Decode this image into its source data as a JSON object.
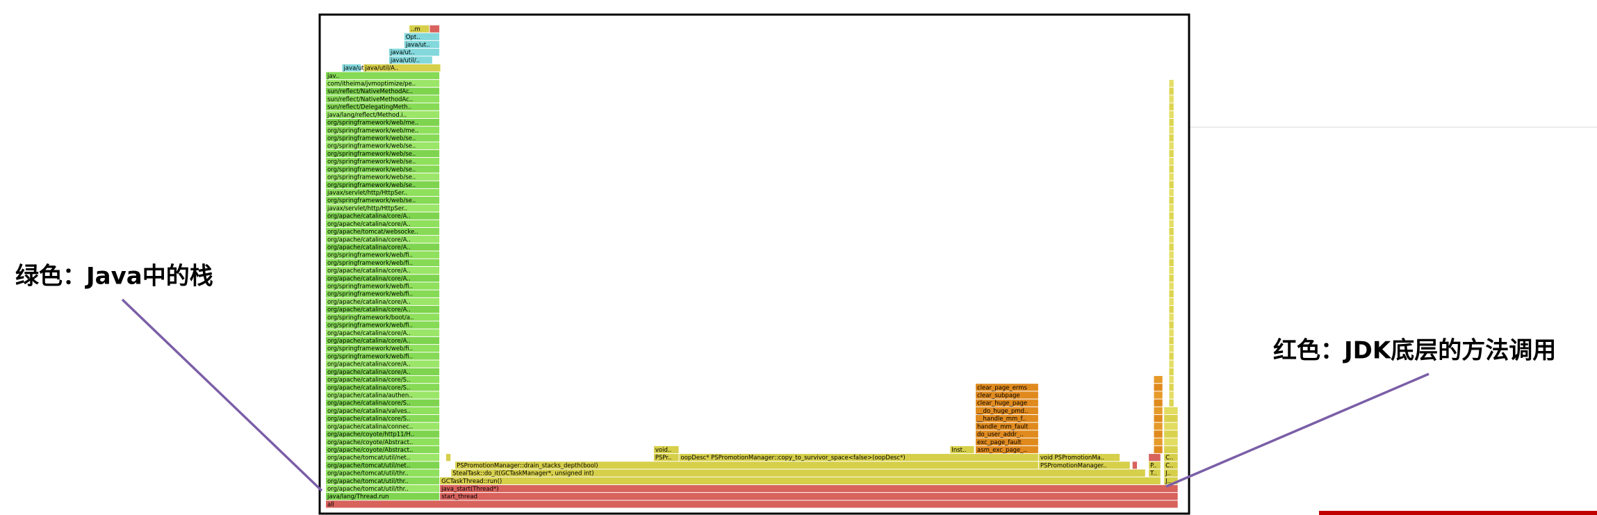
{
  "annotations": {
    "green": "绿色：Java中的栈",
    "red": "红色：JDK底层的方法调用"
  },
  "flame_graph": {
    "frames": [
      {
        "label": "all"
      },
      {
        "label": "java/lang/Thread.run"
      },
      {
        "label": "start_thread"
      },
      {
        "label": "org/apache/tomcat/util/thr.."
      },
      {
        "label": "java_start(Thread*)"
      },
      {
        "label": "org/apache/tomcat/util/thr.."
      },
      {
        "label": "GCTaskThread::run()"
      },
      {
        "label": "J.."
      },
      {
        "label": "org/apache/tomcat/util/thr.."
      },
      {
        "label": "StealTask::do_it(GCTaskManager*, unsigned int)"
      },
      {
        "label": "T.."
      },
      {
        "label": "J.."
      },
      {
        "label": "org/apache/tomcat/util/net.."
      },
      {
        "label": "PSPromotionManager::drain_stacks_depth(bool)"
      },
      {
        "label": "PSPromotionManager.."
      },
      {
        "label": "P.."
      },
      {
        "label": "C.."
      },
      {
        "label": "org/apache/tomcat/util/net.."
      },
      {
        "label": "PSPr.."
      },
      {
        "label": "oopDesc* PSPromotionManager::copy_to_survivor_space<false>(oopDesc*)"
      },
      {
        "label": "void PSPromotionMa.."
      },
      {
        "label": "C.."
      },
      {
        "label": "org/apache/coyote/Abstract.."
      },
      {
        "label": "void.."
      },
      {
        "label": "Inst.."
      },
      {
        "label": "asm_exc_page_.."
      },
      {
        "label": "org/apache/coyote/Abstract.."
      },
      {
        "label": "exc_page_fault"
      },
      {
        "label": "org/apache/coyote/http11/H.."
      },
      {
        "label": "do_user_addr_.."
      },
      {
        "label": "org/apache/catalina/connec.."
      },
      {
        "label": "handle_mm_fault"
      },
      {
        "label": "org/apache/catalina/core/S.."
      },
      {
        "label": "__handle_mm_f.."
      },
      {
        "label": "org/apache/catalina/valves.."
      },
      {
        "label": "__do_huge_pmd.."
      },
      {
        "label": "org/apache/catalina/core/S.."
      },
      {
        "label": "clear_huge_page"
      },
      {
        "label": "org/apache/catalina/authen.."
      },
      {
        "label": "clear_subpage"
      },
      {
        "label": "org/apache/catalina/core/S.."
      },
      {
        "label": "clear_page_erms"
      },
      {
        "label": "org/apache/catalina/core/S.."
      },
      {
        "label": "org/apache/catalina/core/A.."
      },
      {
        "label": "org/apache/catalina/core/A.."
      },
      {
        "label": "org/springframework/web/fi.."
      },
      {
        "label": "org/springframework/web/fi.."
      },
      {
        "label": "org/apache/catalina/core/A.."
      },
      {
        "label": "org/apache/catalina/core/A.."
      },
      {
        "label": "org/springframework/web/fi.."
      },
      {
        "label": "org/springframework/boot/a.."
      },
      {
        "label": "org/apache/catalina/core/A.."
      },
      {
        "label": "org/apache/catalina/core/A.."
      },
      {
        "label": "org/springframework/web/fi.."
      },
      {
        "label": "org/springframework/web/fi.."
      },
      {
        "label": "org/apache/catalina/core/A.."
      },
      {
        "label": "org/apache/catalina/core/A.."
      },
      {
        "label": "org/springframework/web/fi.."
      },
      {
        "label": "org/springframework/web/fi.."
      },
      {
        "label": "org/apache/catalina/core/A.."
      },
      {
        "label": "org/apache/catalina/core/A.."
      },
      {
        "label": "org/apache/tomcat/websocke.."
      },
      {
        "label": "org/apache/catalina/core/A.."
      },
      {
        "label": "org/apache/catalina/core/A.."
      },
      {
        "label": "javax/servlet/http/HttpSer.."
      },
      {
        "label": "org/springframework/web/se.."
      },
      {
        "label": "javax/servlet/http/HttpSer.."
      },
      {
        "label": "org/springframework/web/se.."
      },
      {
        "label": "org/springframework/web/se.."
      },
      {
        "label": "org/springframework/web/se.."
      },
      {
        "label": "org/springframework/web/se.."
      },
      {
        "label": "org/springframework/web/se.."
      },
      {
        "label": "org/springframework/web/se.."
      },
      {
        "label": "org/springframework/web/se.."
      },
      {
        "label": "org/springframework/web/me.."
      },
      {
        "label": "org/springframework/web/me.."
      },
      {
        "label": "java/lang/reflect/Method.i.."
      },
      {
        "label": "sun/reflect/DelegatingMeth.."
      },
      {
        "label": "sun/reflect/NativeMethodAc.."
      },
      {
        "label": "sun/reflect/NativeMethodAc.."
      },
      {
        "label": "com/itheima/jvmoptimize/pe.."
      },
      {
        "label": "jav.."
      },
      {
        "label": "java/util/ArrayList.add"
      },
      {
        "label": "java/util/A.."
      },
      {
        "label": "java/util/.."
      },
      {
        "label": "java/ut.."
      },
      {
        "label": "java/ut.."
      },
      {
        "label": "Opt.."
      },
      {
        "label": "..m"
      }
    ]
  }
}
